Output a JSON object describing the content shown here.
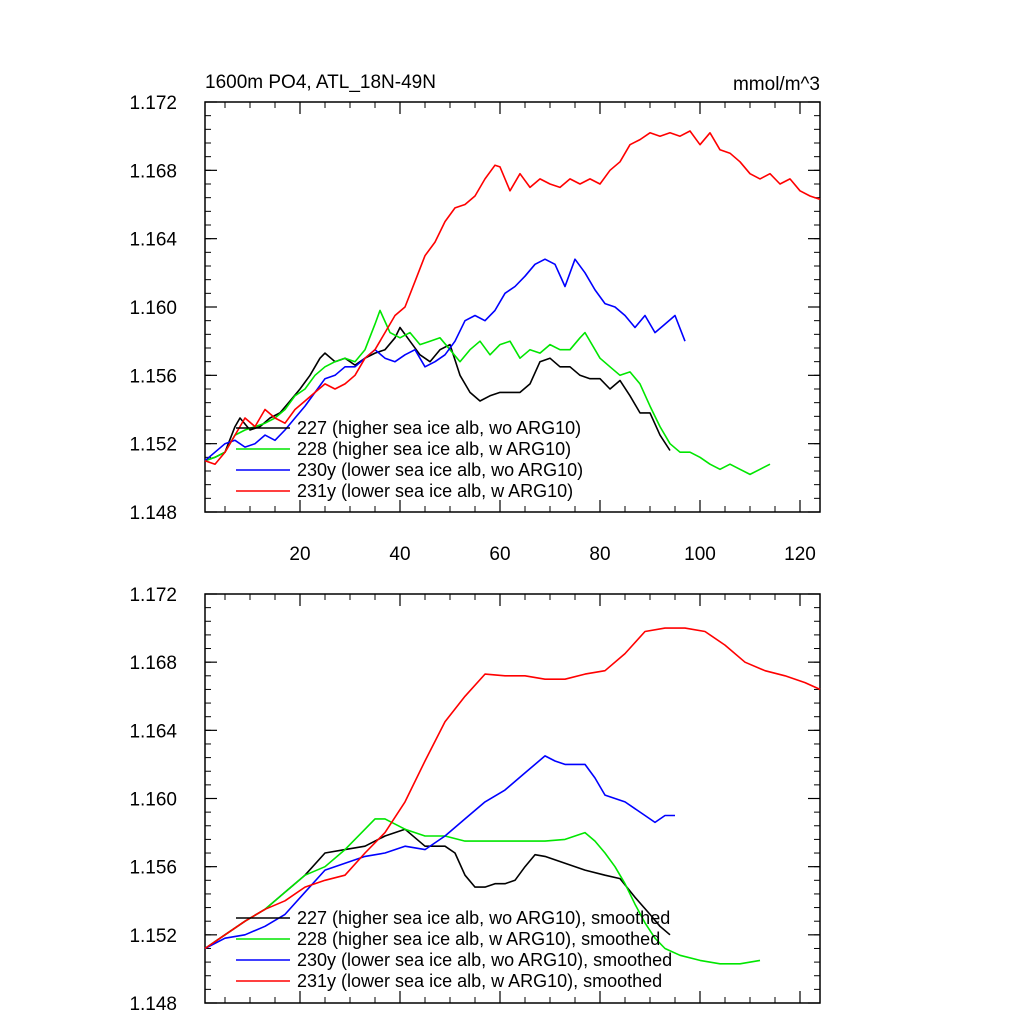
{
  "chart_data": [
    {
      "type": "line",
      "title": "1600m PO4, ATL_18N-49N",
      "units": "mmol/m^3",
      "xlabel": "",
      "ylabel": "",
      "xlim": [
        1,
        124
      ],
      "ylim": [
        1.148,
        1.172
      ],
      "yticks": [
        1.148,
        1.152,
        1.156,
        1.16,
        1.164,
        1.168,
        1.172
      ],
      "ytick_labels": [
        "1.148",
        "1.152",
        "1.156",
        "1.160",
        "1.164",
        "1.168",
        "1.172"
      ],
      "xticks": [
        20,
        40,
        60,
        80,
        100,
        120
      ],
      "xtick_labels": [
        "20",
        "40",
        "60",
        "80",
        "100",
        "120"
      ],
      "legend_position": "lower-left",
      "series": [
        {
          "name": "227 (higher sea ice alb, wo ARG10)",
          "color": "#000000",
          "x": [
            1,
            3,
            5,
            7,
            8,
            10,
            12,
            14,
            16,
            18,
            20,
            22,
            24,
            25,
            27,
            29,
            31,
            33,
            35,
            37,
            39,
            40,
            42,
            44,
            46,
            48,
            50,
            52,
            54,
            56,
            58,
            60,
            62,
            64,
            66,
            68,
            70,
            72,
            74,
            76,
            78,
            80,
            82,
            84,
            86,
            88,
            90,
            92,
            94
          ],
          "y": [
            1.151,
            1.1512,
            1.1515,
            1.153,
            1.1535,
            1.1528,
            1.153,
            1.1535,
            1.1538,
            1.1545,
            1.1552,
            1.156,
            1.157,
            1.1573,
            1.1568,
            1.157,
            1.1566,
            1.157,
            1.1573,
            1.1575,
            1.1582,
            1.1588,
            1.158,
            1.1572,
            1.1568,
            1.1575,
            1.1578,
            1.156,
            1.155,
            1.1545,
            1.1548,
            1.155,
            1.155,
            1.155,
            1.1555,
            1.1568,
            1.157,
            1.1565,
            1.1565,
            1.156,
            1.1558,
            1.1558,
            1.1552,
            1.1557,
            1.1548,
            1.1538,
            1.1538,
            1.1525,
            1.1516
          ]
        },
        {
          "name": "228 (higher sea ice alb, w ARG10)",
          "color": "#00e600",
          "x": [
            1,
            3,
            5,
            7,
            9,
            11,
            13,
            15,
            17,
            19,
            21,
            23,
            25,
            27,
            29,
            31,
            33,
            35,
            36,
            38,
            40,
            42,
            44,
            46,
            48,
            50,
            52,
            54,
            56,
            58,
            60,
            62,
            64,
            66,
            68,
            70,
            72,
            74,
            76,
            77,
            80,
            82,
            84,
            86,
            88,
            90,
            92,
            94,
            96,
            98,
            100,
            102,
            104,
            106,
            108,
            110,
            112,
            114
          ],
          "y": [
            1.151,
            1.1512,
            1.1515,
            1.1525,
            1.1528,
            1.153,
            1.1532,
            1.1535,
            1.154,
            1.1548,
            1.1552,
            1.156,
            1.1565,
            1.1568,
            1.157,
            1.1568,
            1.1575,
            1.159,
            1.1598,
            1.1585,
            1.1582,
            1.1585,
            1.1578,
            1.158,
            1.1582,
            1.1575,
            1.1568,
            1.1575,
            1.158,
            1.1572,
            1.1578,
            1.158,
            1.157,
            1.1575,
            1.1573,
            1.1578,
            1.1575,
            1.1575,
            1.1582,
            1.1585,
            1.157,
            1.1565,
            1.156,
            1.1562,
            1.1555,
            1.1542,
            1.153,
            1.152,
            1.1515,
            1.1515,
            1.1512,
            1.1508,
            1.1505,
            1.1508,
            1.1505,
            1.1502,
            1.1505,
            1.1508
          ]
        },
        {
          "name": "230y (lower sea ice alb, wo ARG10)",
          "color": "#0000ff",
          "x": [
            1,
            3,
            5,
            7,
            9,
            11,
            13,
            15,
            17,
            19,
            21,
            23,
            25,
            27,
            29,
            31,
            33,
            35,
            37,
            39,
            41,
            43,
            45,
            47,
            49,
            51,
            53,
            55,
            57,
            59,
            61,
            63,
            65,
            67,
            69,
            71,
            73,
            75,
            77,
            79,
            81,
            83,
            85,
            87,
            89,
            91,
            93,
            95,
            97
          ],
          "y": [
            1.151,
            1.1515,
            1.152,
            1.1522,
            1.1518,
            1.152,
            1.1525,
            1.1522,
            1.1528,
            1.1535,
            1.1542,
            1.155,
            1.1558,
            1.156,
            1.1565,
            1.1565,
            1.157,
            1.1575,
            1.157,
            1.1568,
            1.1572,
            1.1575,
            1.1565,
            1.1568,
            1.1572,
            1.158,
            1.1592,
            1.1595,
            1.1592,
            1.1598,
            1.1608,
            1.1612,
            1.1618,
            1.1625,
            1.1628,
            1.1625,
            1.1612,
            1.1628,
            1.162,
            1.161,
            1.1602,
            1.16,
            1.1595,
            1.1588,
            1.1595,
            1.1585,
            1.159,
            1.1595,
            1.158
          ]
        },
        {
          "name": "231y (lower sea ice alb, w ARG10)",
          "color": "#ff0000",
          "x": [
            1,
            3,
            5,
            7,
            9,
            11,
            13,
            15,
            17,
            19,
            21,
            23,
            25,
            27,
            29,
            31,
            33,
            35,
            37,
            39,
            41,
            43,
            45,
            47,
            49,
            51,
            53,
            55,
            57,
            59,
            60,
            62,
            64,
            66,
            68,
            70,
            72,
            74,
            76,
            78,
            80,
            82,
            84,
            86,
            88,
            90,
            92,
            94,
            96,
            98,
            100,
            102,
            104,
            106,
            108,
            110,
            112,
            114,
            116,
            118,
            120,
            122,
            124
          ],
          "y": [
            1.151,
            1.1508,
            1.1515,
            1.1525,
            1.1535,
            1.153,
            1.154,
            1.1535,
            1.1532,
            1.154,
            1.1545,
            1.155,
            1.1555,
            1.1552,
            1.1555,
            1.156,
            1.157,
            1.1575,
            1.1585,
            1.1595,
            1.16,
            1.1615,
            1.163,
            1.1638,
            1.165,
            1.1658,
            1.166,
            1.1665,
            1.1675,
            1.1683,
            1.1682,
            1.1668,
            1.1678,
            1.167,
            1.1675,
            1.1672,
            1.167,
            1.1675,
            1.1672,
            1.1675,
            1.1672,
            1.168,
            1.1685,
            1.1695,
            1.1698,
            1.1702,
            1.17,
            1.1702,
            1.17,
            1.1703,
            1.1695,
            1.1702,
            1.1692,
            1.169,
            1.1685,
            1.1678,
            1.1675,
            1.1678,
            1.1672,
            1.1675,
            1.1668,
            1.1665,
            1.1663
          ]
        }
      ]
    },
    {
      "type": "line",
      "title": "",
      "xlabel": "",
      "ylabel": "",
      "xlim": [
        1,
        124
      ],
      "ylim": [
        1.148,
        1.172
      ],
      "yticks": [
        1.148,
        1.152,
        1.156,
        1.16,
        1.164,
        1.168,
        1.172
      ],
      "ytick_labels": [
        "1.148",
        "1.152",
        "1.156",
        "1.160",
        "1.164",
        "1.168",
        "1.172"
      ],
      "xticks": [
        20,
        40,
        60,
        80,
        100,
        120
      ],
      "xtick_labels": [],
      "legend_position": "lower-left",
      "series": [
        {
          "name": "227 (higher sea ice alb, wo ARG10), smoothed",
          "color": "#000000",
          "x": [
            1,
            5,
            9,
            13,
            17,
            21,
            25,
            29,
            33,
            37,
            41,
            45,
            49,
            51,
            53,
            55,
            57,
            59,
            61,
            63,
            65,
            67,
            69,
            73,
            77,
            81,
            84,
            87,
            90,
            92,
            94
          ],
          "y": [
            1.1512,
            1.152,
            1.1528,
            1.1535,
            1.1545,
            1.1555,
            1.1568,
            1.157,
            1.1572,
            1.1578,
            1.1582,
            1.1572,
            1.1572,
            1.1568,
            1.1555,
            1.1548,
            1.1548,
            1.155,
            1.155,
            1.1552,
            1.156,
            1.1567,
            1.1566,
            1.1562,
            1.1558,
            1.1555,
            1.1553,
            1.1542,
            1.1532,
            1.1525,
            1.152
          ]
        },
        {
          "name": "228 (higher sea ice alb, w ARG10), smoothed",
          "color": "#00e600",
          "x": [
            1,
            5,
            9,
            13,
            17,
            21,
            25,
            29,
            33,
            35,
            37,
            39,
            41,
            45,
            49,
            53,
            57,
            61,
            65,
            69,
            73,
            77,
            79,
            81,
            83,
            85,
            87,
            89,
            91,
            93,
            96,
            100,
            104,
            108,
            112
          ],
          "y": [
            1.1512,
            1.152,
            1.1528,
            1.1535,
            1.1545,
            1.1555,
            1.156,
            1.157,
            1.1582,
            1.1588,
            1.1588,
            1.1585,
            1.1582,
            1.1578,
            1.1578,
            1.1575,
            1.1575,
            1.1575,
            1.1575,
            1.1575,
            1.1576,
            1.158,
            1.1575,
            1.1568,
            1.156,
            1.155,
            1.1538,
            1.1527,
            1.1518,
            1.1512,
            1.1508,
            1.1505,
            1.1503,
            1.1503,
            1.1505
          ]
        },
        {
          "name": "230y (lower sea ice alb, wo ARG10), smoothed",
          "color": "#0000ff",
          "x": [
            1,
            5,
            9,
            13,
            17,
            21,
            25,
            29,
            33,
            37,
            41,
            45,
            49,
            53,
            57,
            61,
            65,
            69,
            71,
            73,
            75,
            77,
            79,
            81,
            85,
            89,
            91,
            93,
            95
          ],
          "y": [
            1.1512,
            1.1518,
            1.152,
            1.1525,
            1.1532,
            1.1545,
            1.1558,
            1.1562,
            1.1566,
            1.1568,
            1.1572,
            1.157,
            1.1578,
            1.1588,
            1.1598,
            1.1605,
            1.1615,
            1.1625,
            1.1622,
            1.162,
            1.162,
            1.162,
            1.1612,
            1.1602,
            1.1598,
            1.159,
            1.1586,
            1.159,
            1.159
          ]
        },
        {
          "name": "231y (lower sea ice alb, w ARG10), smoothed",
          "color": "#ff0000",
          "x": [
            1,
            5,
            9,
            13,
            17,
            21,
            25,
            29,
            33,
            37,
            41,
            45,
            49,
            53,
            57,
            61,
            65,
            69,
            73,
            77,
            81,
            85,
            89,
            93,
            97,
            101,
            105,
            109,
            113,
            117,
            121,
            124
          ],
          "y": [
            1.1512,
            1.152,
            1.1528,
            1.1535,
            1.154,
            1.1548,
            1.1552,
            1.1555,
            1.1568,
            1.158,
            1.1598,
            1.1622,
            1.1645,
            1.166,
            1.1673,
            1.1672,
            1.1672,
            1.167,
            1.167,
            1.1673,
            1.1675,
            1.1685,
            1.1698,
            1.17,
            1.17,
            1.1698,
            1.169,
            1.168,
            1.1675,
            1.1672,
            1.1668,
            1.1664
          ]
        }
      ]
    }
  ]
}
